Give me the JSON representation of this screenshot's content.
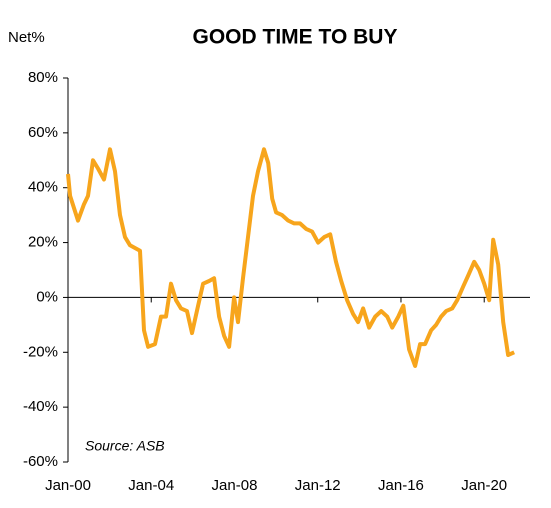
{
  "chart_data": {
    "type": "line",
    "title": "GOOD TIME TO BUY",
    "y_label": "Net%",
    "annotation": "Source: ASB",
    "series": [
      {
        "name": "Good time to buy",
        "color": "#F7A51C",
        "x": [
          2000.0,
          2000.1,
          2000.48,
          2000.77,
          2000.96,
          2001.2,
          2001.44,
          2001.73,
          2002.02,
          2002.26,
          2002.5,
          2002.74,
          2002.98,
          2003.46,
          2003.65,
          2003.85,
          2004.18,
          2004.47,
          2004.71,
          2004.95,
          2005.19,
          2005.43,
          2005.72,
          2005.96,
          2006.25,
          2006.49,
          2006.78,
          2007.02,
          2007.26,
          2007.5,
          2007.74,
          2007.98,
          2008.17,
          2008.41,
          2008.65,
          2008.89,
          2009.13,
          2009.42,
          2009.62,
          2009.81,
          2010.0,
          2010.29,
          2010.58,
          2010.87,
          2011.15,
          2011.44,
          2011.73,
          2012.02,
          2012.31,
          2012.6,
          2012.88,
          2013.13,
          2013.41,
          2013.7,
          2013.94,
          2014.18,
          2014.47,
          2014.76,
          2015.05,
          2015.34,
          2015.58,
          2015.87,
          2016.11,
          2016.39,
          2016.68,
          2016.92,
          2017.16,
          2017.45,
          2017.69,
          2017.93,
          2018.17,
          2018.46,
          2018.7,
          2018.99,
          2019.23,
          2019.52,
          2019.76,
          2020.0,
          2020.24,
          2020.43,
          2020.67,
          2020.91,
          2021.15,
          2021.44
        ],
        "values": [
          45,
          37,
          28,
          34,
          37,
          50,
          47,
          43,
          54,
          46,
          30,
          22,
          19,
          17,
          -12,
          -18,
          -17,
          -7,
          -7,
          5,
          -1,
          -4,
          -5,
          -13,
          -3,
          5,
          6,
          7,
          -7,
          -14,
          -18,
          0,
          -9,
          7,
          22,
          37,
          46,
          54,
          49,
          36,
          31,
          30,
          28,
          27,
          27,
          25,
          24,
          20,
          22,
          23,
          13,
          6,
          -1,
          -6,
          -9,
          -4,
          -11,
          -7,
          -5,
          -7,
          -11,
          -7,
          -3,
          -19,
          -25,
          -17,
          -17,
          -12,
          -10,
          -7,
          -5,
          -4,
          -1,
          4,
          8,
          13,
          10,
          5,
          -1,
          21,
          12,
          -9,
          -21,
          -20
        ]
      }
    ],
    "xlim": [
      2000,
      2022.2
    ],
    "xticks": [
      {
        "value": 2000,
        "label": "Jan-00"
      },
      {
        "value": 2004,
        "label": "Jan-04"
      },
      {
        "value": 2008,
        "label": "Jan-08"
      },
      {
        "value": 2012,
        "label": "Jan-12"
      },
      {
        "value": 2016,
        "label": "Jan-16"
      },
      {
        "value": 2020,
        "label": "Jan-20"
      }
    ],
    "ylim": [
      -60,
      80
    ],
    "yticks": [
      {
        "value": -60,
        "label": "-60%"
      },
      {
        "value": -40,
        "label": "-40%"
      },
      {
        "value": -20,
        "label": "-20%"
      },
      {
        "value": 0,
        "label": "0%"
      },
      {
        "value": 20,
        "label": "20%"
      },
      {
        "value": 40,
        "label": "40%"
      },
      {
        "value": 60,
        "label": "60%"
      },
      {
        "value": 80,
        "label": "80%"
      }
    ]
  }
}
